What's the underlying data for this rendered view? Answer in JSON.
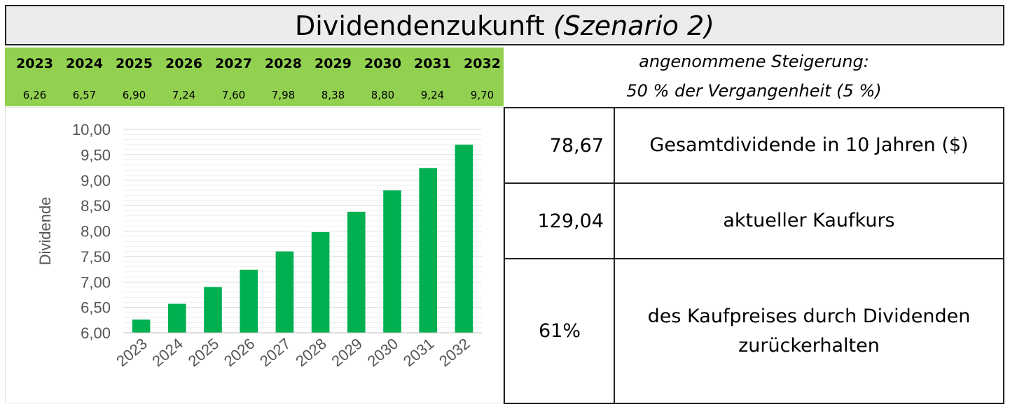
{
  "title": {
    "main": "Dividendenzukunft",
    "scenario": "(Szenario 2)"
  },
  "years_table": {
    "years": [
      "2023",
      "2024",
      "2025",
      "2026",
      "2027",
      "2028",
      "2029",
      "2030",
      "2031",
      "2032"
    ],
    "values": [
      "6,26",
      "6,57",
      "6,90",
      "7,24",
      "7,60",
      "7,98",
      "8,38",
      "8,80",
      "9,24",
      "9,70"
    ]
  },
  "assumption": {
    "line1": "angenommene Steigerung:",
    "line2": "50 % der Vergangenheit (5 %)"
  },
  "kpis": [
    {
      "value": "78,67",
      "label": "Gesamtdividende in 10 Jahren ($)"
    },
    {
      "value": "129,04",
      "label": "aktueller Kaufkurs"
    },
    {
      "value": "61%",
      "label_line1": "des Kaufpreises durch Dividenden",
      "label_line2": "zurückerhalten"
    }
  ],
  "chart_data": {
    "type": "bar",
    "categories": [
      "2023",
      "2024",
      "2025",
      "2026",
      "2027",
      "2028",
      "2029",
      "2030",
      "2031",
      "2032"
    ],
    "values": [
      6.26,
      6.57,
      6.9,
      7.24,
      7.6,
      7.98,
      8.38,
      8.8,
      9.24,
      9.7
    ],
    "ylabel": "Dividende",
    "ylim": [
      6.0,
      10.0
    ],
    "yticks": [
      "6,00",
      "6,50",
      "7,00",
      "7,50",
      "8,00",
      "8,50",
      "9,00",
      "9,50",
      "10,00"
    ],
    "grid": true,
    "bar_color": "#00b050",
    "grid_color": "#d9d9d9"
  },
  "colors": {
    "year_band": "#92d050",
    "title_bg": "#ececec"
  }
}
